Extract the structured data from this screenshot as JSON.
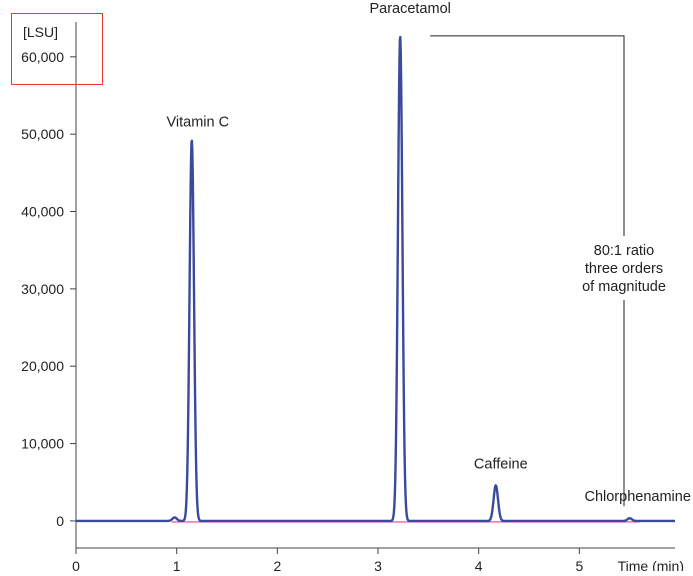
{
  "chart_data": {
    "type": "line",
    "unit_label": "[LSU]",
    "xlabel": "Time (min)",
    "x_ticks": [
      "0",
      "1",
      "2",
      "3",
      "4",
      "5"
    ],
    "y_ticks": [
      "0",
      "10,000",
      "20,000",
      "30,000",
      "40,000",
      "50,000",
      "60,000"
    ],
    "xlim": [
      0,
      5.95
    ],
    "ylim": [
      -3500,
      64500
    ],
    "grid": false,
    "peaks": [
      {
        "label": "Vitamin C",
        "retention_time_min": 1.15,
        "height_lsu": 49300
      },
      {
        "label": "Paracetamol",
        "retention_time_min": 3.22,
        "height_lsu": 62700
      },
      {
        "label": "Caffeine",
        "retention_time_min": 4.17,
        "height_lsu": 4600
      },
      {
        "label": "Chlorphenamine",
        "retention_time_min": 5.5,
        "height_lsu": 350
      }
    ],
    "minor_peaks": [
      {
        "retention_time_min": 0.98,
        "height_lsu": 450
      }
    ],
    "annotation": {
      "lines": [
        "80:1 ratio",
        "three orders",
        "of magnitude"
      ]
    },
    "colors": {
      "signal": "#3a4a9c",
      "baseline": "#e0409a",
      "highlight_box": "#e53935",
      "axis": "#444444"
    }
  }
}
